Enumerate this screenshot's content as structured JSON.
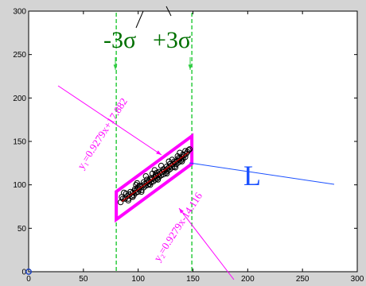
{
  "chart_data": {
    "type": "scatter",
    "title": "",
    "xlabel": "",
    "ylabel": "",
    "xlim": [
      0,
      300
    ],
    "ylim": [
      0,
      300
    ],
    "xticks": [
      0,
      50,
      100,
      150,
      200,
      250,
      300
    ],
    "yticks": [
      0,
      50,
      100,
      150,
      200,
      250,
      300
    ],
    "grid": false,
    "colors": {
      "points": "#000000",
      "band_lines": "#ff00ff",
      "sigma_lines": "#2ecc40",
      "regression": "#c00000",
      "label_L": "#1a50ff",
      "sigma_text": "#007000",
      "origin_marker": "#1a40c0"
    },
    "regression_line": {
      "slope": 0.9279,
      "intercept": 1.883
    },
    "upper_line": {
      "slope": 0.9279,
      "intercept": 17.882,
      "label": "y₁=0.9279x+17.882"
    },
    "lower_line": {
      "slope": 0.9279,
      "intercept": -14.116,
      "label": "y₂=0.9279x-14.116"
    },
    "sigma_bounds": {
      "x_low": 80,
      "x_high": 149,
      "low_label": "-3σ",
      "high_label": "+3σ"
    },
    "line_label": "L",
    "points": [
      [
        84,
        80
      ],
      [
        86,
        84
      ],
      [
        88,
        84
      ],
      [
        90,
        87
      ],
      [
        91,
        84
      ],
      [
        92,
        89
      ],
      [
        94,
        87
      ],
      [
        95,
        91
      ],
      [
        96,
        88
      ],
      [
        97,
        93
      ],
      [
        98,
        91
      ],
      [
        99,
        96
      ],
      [
        100,
        92
      ],
      [
        100,
        97
      ],
      [
        101,
        95
      ],
      [
        102,
        98
      ],
      [
        103,
        94
      ],
      [
        104,
        99
      ],
      [
        105,
        97
      ],
      [
        106,
        101
      ],
      [
        107,
        99
      ],
      [
        108,
        103
      ],
      [
        109,
        100
      ],
      [
        110,
        104
      ],
      [
        110,
        101
      ],
      [
        111,
        106
      ],
      [
        112,
        103
      ],
      [
        113,
        107
      ],
      [
        114,
        104
      ],
      [
        115,
        109
      ],
      [
        115,
        106
      ],
      [
        116,
        110
      ],
      [
        117,
        107
      ],
      [
        118,
        111
      ],
      [
        119,
        109
      ],
      [
        120,
        113
      ],
      [
        121,
        111
      ],
      [
        122,
        115
      ],
      [
        123,
        112
      ],
      [
        124,
        116
      ],
      [
        125,
        114
      ],
      [
        126,
        118
      ],
      [
        127,
        116
      ],
      [
        128,
        120
      ],
      [
        129,
        118
      ],
      [
        130,
        122
      ],
      [
        131,
        120
      ],
      [
        132,
        124
      ],
      [
        133,
        121
      ],
      [
        134,
        126
      ],
      [
        135,
        124
      ],
      [
        136,
        128
      ],
      [
        137,
        126
      ],
      [
        138,
        130
      ],
      [
        139,
        128
      ],
      [
        140,
        132
      ],
      [
        141,
        130
      ],
      [
        142,
        134
      ],
      [
        143,
        132
      ],
      [
        144,
        136
      ],
      [
        89,
        90
      ],
      [
        93,
        92
      ],
      [
        97,
        95
      ],
      [
        101,
        99
      ],
      [
        105,
        103
      ],
      [
        108,
        106
      ],
      [
        112,
        108
      ],
      [
        116,
        112
      ],
      [
        119,
        115
      ],
      [
        123,
        118
      ],
      [
        126,
        121
      ],
      [
        129,
        124
      ],
      [
        133,
        127
      ],
      [
        137,
        131
      ],
      [
        141,
        135
      ],
      [
        145,
        138
      ],
      [
        95,
        86
      ],
      [
        103,
        92
      ],
      [
        111,
        100
      ],
      [
        118,
        106
      ],
      [
        126,
        113
      ],
      [
        134,
        120
      ],
      [
        140,
        127
      ],
      [
        87,
        91
      ],
      [
        99,
        102
      ],
      [
        107,
        110
      ],
      [
        115,
        117
      ],
      [
        121,
        122
      ],
      [
        128,
        127
      ],
      [
        138,
        137
      ],
      [
        146,
        140
      ],
      [
        91,
        82
      ],
      [
        117,
        114
      ],
      [
        131,
        129
      ],
      [
        136,
        133
      ],
      [
        143,
        139
      ],
      [
        147,
        141
      ],
      [
        85,
        86
      ],
      [
        98,
        100
      ],
      [
        113,
        113
      ]
    ],
    "origin_marker": [
      0,
      0
    ]
  }
}
